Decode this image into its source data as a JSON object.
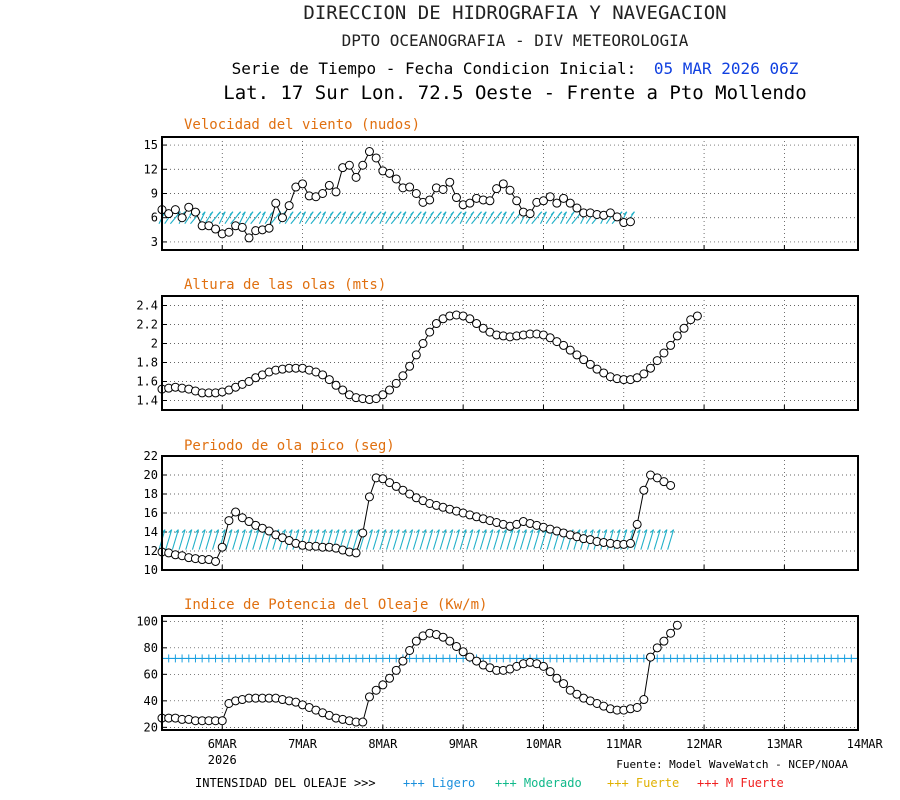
{
  "header": {
    "line1": "DIRECCION DE HIDROGRAFIA Y NAVEGACION",
    "line2": "DPTO OCEANOGRAFIA - DIV METEOROLOGIA",
    "line3_prefix": "Serie de Tiempo - Fecha Condicion Inicial:",
    "line3_date": "05 MAR 2026 06Z",
    "line4": "Lat. 17 Sur  Lon. 72.5 Oeste - Frente a Pto Mollendo"
  },
  "footer": {
    "source": "Fuente: Model WaveWatch - NCEP/NOAA",
    "legend_label": "INTENSIDAD DEL OLEAJE >>>",
    "legend": [
      {
        "text": "+++ Ligero",
        "color": "#1a8fdc"
      },
      {
        "text": "+++ Moderado",
        "color": "#10b98a"
      },
      {
        "text": "+++ Fuerte",
        "color": "#f0c000"
      },
      {
        "text": "+++ M Fuerte",
        "color": "#f02020"
      }
    ]
  },
  "colors": {
    "panel_title": "#e07010",
    "line": "#000000",
    "arrow": "#20b0c8",
    "index_line": "#1aa0e0",
    "date_blue": "#1040e0"
  },
  "x_axis": {
    "range": [
      0,
      104
    ],
    "ticks": [
      {
        "x": 9,
        "label": "6MAR",
        "sub": "2026"
      },
      {
        "x": 21,
        "label": "7MAR"
      },
      {
        "x": 33,
        "label": "8MAR"
      },
      {
        "x": 45,
        "label": "9MAR"
      },
      {
        "x": 57,
        "label": "10MAR"
      },
      {
        "x": 69,
        "label": "11MAR"
      },
      {
        "x": 81,
        "label": "12MAR"
      },
      {
        "x": 93,
        "label": "13MAR"
      },
      {
        "x": 105,
        "label": "14MAR"
      }
    ]
  },
  "chart_data": [
    {
      "type": "line",
      "title": "Velocidad del viento (nudos)",
      "ylim": [
        2,
        16
      ],
      "yticks": [
        3,
        6,
        9,
        12,
        15
      ],
      "x_step_hours": 2,
      "values": [
        7,
        6.5,
        7,
        6,
        7.3,
        6.7,
        5,
        5,
        4.6,
        4,
        4.2,
        5,
        4.8,
        3.5,
        4.4,
        4.5,
        4.7,
        7.8,
        6,
        7.5,
        9.8,
        10.2,
        8.7,
        8.6,
        9,
        10,
        9.2,
        12.2,
        12.5,
        11,
        12.5,
        14.2,
        13.4,
        11.8,
        11.5,
        10.8,
        9.7,
        9.8,
        9,
        7.9,
        8.2,
        9.7,
        9.5,
        10.4,
        8.5,
        7.6,
        7.8,
        8.4,
        8.2,
        8.1,
        9.6,
        10.2,
        9.4,
        8.1,
        6.7,
        6.5,
        7.9,
        8.1,
        8.6,
        7.8,
        8.4,
        7.8,
        7.2,
        6.6,
        6.6,
        6.4,
        6.3,
        6.6,
        6.1,
        5.4,
        5.5
      ],
      "arrows": true,
      "arrow_level": 6
    },
    {
      "type": "line",
      "title": "Altura de las olas (mts)",
      "ylim": [
        1.3,
        2.5
      ],
      "yticks": [
        1.4,
        1.6,
        1.8,
        2.0,
        2.2,
        2.4
      ],
      "x_step_hours": 2,
      "values": [
        1.52,
        1.53,
        1.54,
        1.53,
        1.52,
        1.5,
        1.48,
        1.48,
        1.48,
        1.49,
        1.51,
        1.54,
        1.57,
        1.6,
        1.64,
        1.67,
        1.7,
        1.72,
        1.73,
        1.74,
        1.74,
        1.74,
        1.72,
        1.7,
        1.67,
        1.62,
        1.56,
        1.51,
        1.46,
        1.43,
        1.42,
        1.41,
        1.42,
        1.46,
        1.51,
        1.58,
        1.66,
        1.76,
        1.88,
        2.0,
        2.12,
        2.21,
        2.26,
        2.29,
        2.3,
        2.29,
        2.26,
        2.21,
        2.16,
        2.12,
        2.09,
        2.08,
        2.07,
        2.08,
        2.09,
        2.1,
        2.1,
        2.09,
        2.06,
        2.02,
        1.98,
        1.93,
        1.88,
        1.83,
        1.78,
        1.73,
        1.69,
        1.65,
        1.63,
        1.62,
        1.62,
        1.64,
        1.68,
        1.74,
        1.82,
        1.9,
        1.98,
        2.08,
        2.16,
        2.25,
        2.29
      ]
    },
    {
      "type": "line",
      "title": "Periodo de ola pico (seg)",
      "ylim": [
        10,
        22
      ],
      "yticks": [
        10,
        12,
        14,
        16,
        18,
        20,
        22
      ],
      "x_step_hours": 2,
      "values": [
        11.9,
        11.8,
        11.6,
        11.5,
        11.3,
        11.2,
        11.1,
        11.1,
        10.9,
        12.4,
        15.2,
        16.1,
        15.5,
        15.1,
        14.7,
        14.4,
        14.1,
        13.7,
        13.4,
        13.1,
        12.8,
        12.6,
        12.5,
        12.5,
        12.4,
        12.4,
        12.3,
        12.1,
        11.9,
        11.8,
        13.9,
        17.7,
        19.7,
        19.6,
        19.2,
        18.8,
        18.4,
        18,
        17.6,
        17.3,
        17,
        16.8,
        16.6,
        16.4,
        16.2,
        16,
        15.8,
        15.6,
        15.4,
        15.2,
        15,
        14.8,
        14.6,
        14.8,
        15.1,
        14.9,
        14.7,
        14.5,
        14.3,
        14.1,
        13.9,
        13.7,
        13.5,
        13.3,
        13.2,
        13,
        12.9,
        12.8,
        12.7,
        12.7,
        12.8,
        14.8,
        18.4,
        20,
        19.7,
        19.3,
        18.9
      ],
      "arrows": true,
      "arrow_level": 13.2
    },
    {
      "type": "line",
      "title": "Indice de Potencia del Oleaje (Kw/m)",
      "ylim": [
        18,
        104
      ],
      "yticks": [
        20,
        40,
        60,
        80,
        100
      ],
      "x_step_hours": 2,
      "values": [
        27,
        27,
        27,
        26,
        26,
        25,
        25,
        25,
        25,
        25,
        38,
        40,
        41,
        42,
        42,
        42,
        42,
        42,
        41,
        40,
        39,
        37,
        35,
        33,
        31,
        29,
        27,
        26,
        25,
        24,
        24,
        43,
        48,
        52,
        57,
        63,
        70,
        78,
        85,
        89,
        91,
        90,
        88,
        85,
        81,
        77,
        73,
        70,
        67,
        65,
        63,
        63,
        64,
        66,
        68,
        69,
        68,
        66,
        62,
        57,
        53,
        48,
        45,
        42,
        40,
        38,
        36,
        34,
        33,
        33,
        34,
        35,
        41,
        73,
        80,
        85,
        91,
        97
      ],
      "index_level": 72
    }
  ]
}
